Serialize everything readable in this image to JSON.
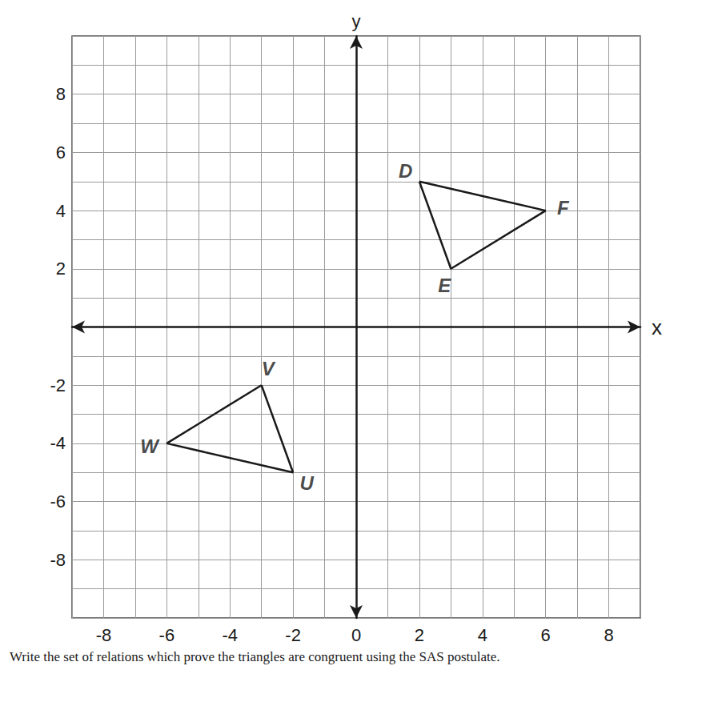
{
  "chart_data": {
    "type": "polygon",
    "xlim": [
      -9,
      9
    ],
    "ylim": [
      -10,
      10
    ],
    "xticks": [
      -8,
      -6,
      -4,
      -2,
      0,
      2,
      4,
      6,
      8
    ],
    "yticks": [
      -8,
      -6,
      -4,
      -2,
      2,
      4,
      6,
      8
    ],
    "x_label": "x",
    "y_label": "y",
    "grid": true,
    "color": "#1a1a1a",
    "shapes": [
      {
        "vertices": [
          {
            "label": "D",
            "x": 2,
            "y": 5
          },
          {
            "label": "F",
            "x": 6,
            "y": 4
          },
          {
            "label": "E",
            "x": 3,
            "y": 2
          }
        ]
      },
      {
        "vertices": [
          {
            "label": "V",
            "x": -3,
            "y": -2
          },
          {
            "label": "U",
            "x": -2,
            "y": -5
          },
          {
            "label": "W",
            "x": -6,
            "y": -4
          }
        ]
      }
    ],
    "instruction": "Write the set of relations which prove the triangles are congruent using the SAS postulate."
  }
}
